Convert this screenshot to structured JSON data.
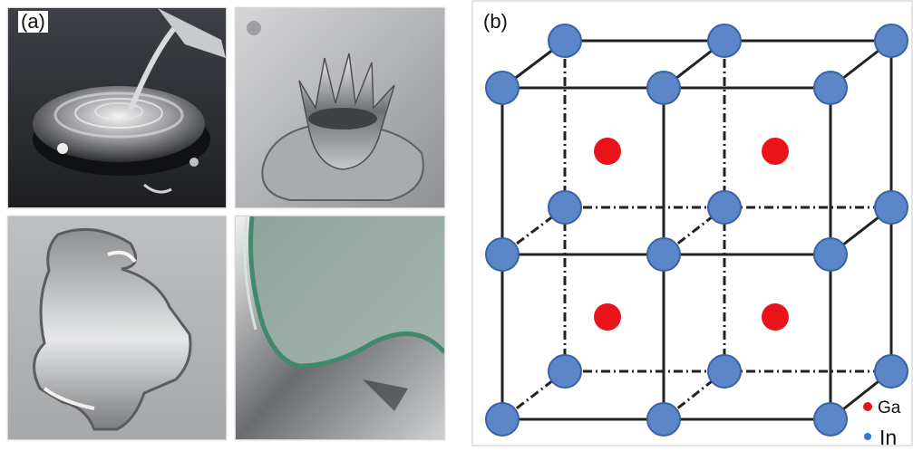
{
  "figure": {
    "panel_a": {
      "label": "(a)",
      "photos": [
        "pouring-droplet",
        "splash-crown",
        "spread-film",
        "coated-glass-edge"
      ]
    },
    "panel_b": {
      "label": "(b)",
      "legend": [
        {
          "text": "Ga",
          "color": "#e8141a"
        },
        {
          "text": "In",
          "color": "#2f79c6"
        }
      ],
      "atom_colors": {
        "in_fill": "#5b86c8",
        "in_stroke": "#3a63a3",
        "ga_fill": "#e8141a"
      }
    }
  }
}
